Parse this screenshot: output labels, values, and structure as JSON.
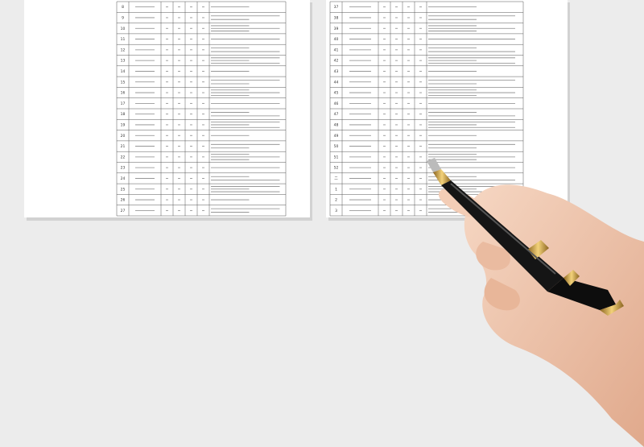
{
  "left_table": {
    "rows": [
      "8",
      "9",
      "10",
      "11",
      "12",
      "13",
      "14",
      "15",
      "16",
      "17",
      "18",
      "19",
      "20",
      "21",
      "22",
      "23",
      "24",
      "25",
      "26",
      "27"
    ]
  },
  "right_table": {
    "rows": [
      "37",
      "38",
      "39",
      "40",
      "41",
      "42",
      "43",
      "44",
      "45",
      "46",
      "47",
      "48",
      "49",
      "50",
      "51",
      "52",
      "二",
      "1",
      "2",
      "3"
    ]
  }
}
